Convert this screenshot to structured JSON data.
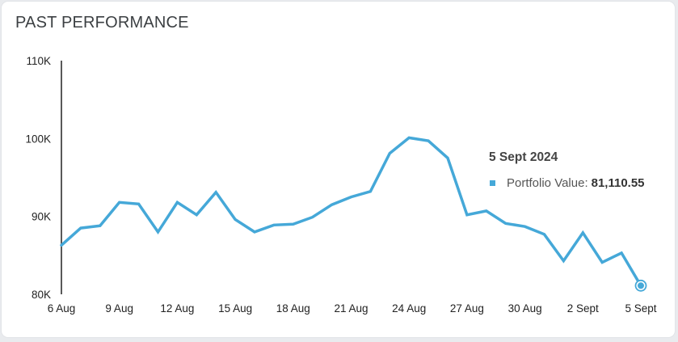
{
  "card": {
    "title": "PAST PERFORMANCE"
  },
  "tooltip": {
    "date": "5 Sept 2024",
    "series_label": "Portfolio Value:",
    "value_text": "81,110.55"
  },
  "colors": {
    "line": "#45a8d8",
    "axis": "#222222",
    "background": "#ffffff"
  },
  "chart_data": {
    "type": "line",
    "grid": false,
    "ylim": [
      80000,
      110000
    ],
    "yticks": [
      {
        "value": 80000,
        "label": "80K"
      },
      {
        "value": 90000,
        "label": "90K"
      },
      {
        "value": 100000,
        "label": "100K"
      },
      {
        "value": 110000,
        "label": "110K"
      }
    ],
    "xticks": [
      {
        "index": 0,
        "label": "6 Aug"
      },
      {
        "index": 3,
        "label": "9 Aug"
      },
      {
        "index": 6,
        "label": "12 Aug"
      },
      {
        "index": 9,
        "label": "15 Aug"
      },
      {
        "index": 12,
        "label": "18 Aug"
      },
      {
        "index": 15,
        "label": "21 Aug"
      },
      {
        "index": 18,
        "label": "24 Aug"
      },
      {
        "index": 21,
        "label": "27 Aug"
      },
      {
        "index": 24,
        "label": "30 Aug"
      },
      {
        "index": 27,
        "label": "2 Sept"
      },
      {
        "index": 30,
        "label": "5 Sept"
      }
    ],
    "series": [
      {
        "values": [
          86300,
          88500,
          88800,
          91800,
          91600,
          88000,
          91800,
          90200,
          93100,
          89600,
          88000,
          88900,
          89000,
          89900,
          91500,
          92500,
          93200,
          98100,
          100100,
          99700,
          97500,
          90200,
          90700,
          89100,
          88700,
          87700,
          84300,
          87900,
          84100,
          85300,
          81110.55
        ]
      }
    ],
    "highlight": {
      "index": 30,
      "value": 81110.55
    }
  }
}
